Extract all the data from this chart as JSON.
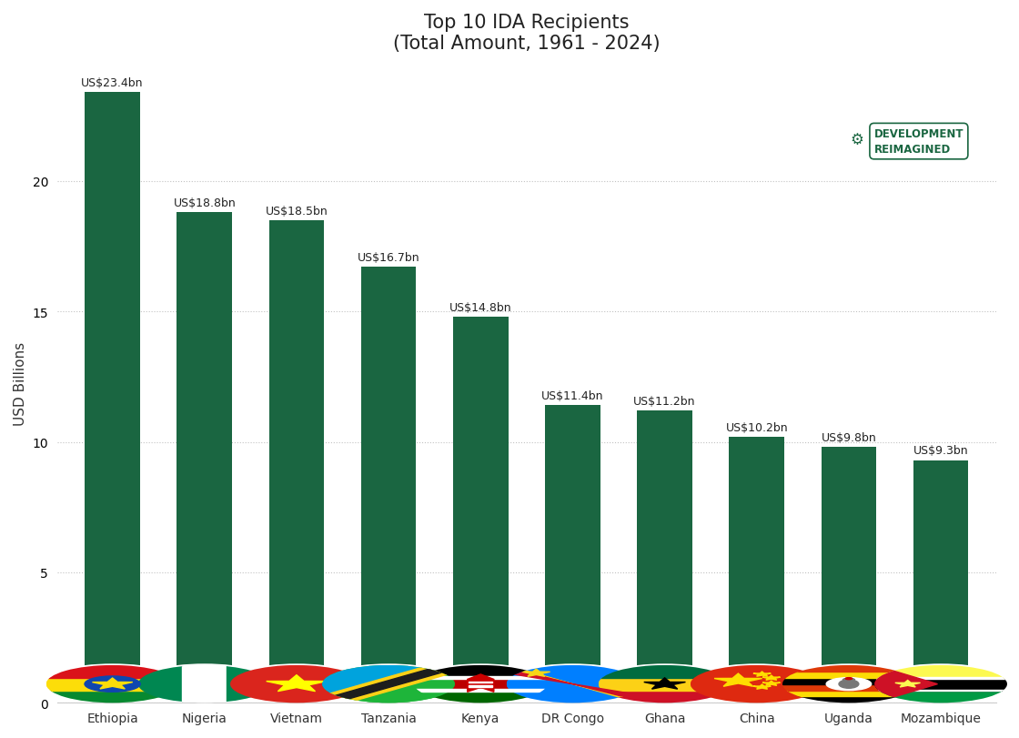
{
  "title": "Top 10 IDA Recipients\n(Total Amount, 1961 - 2024)",
  "categories": [
    "Ethiopia",
    "Nigeria",
    "Vietnam",
    "Tanzania",
    "Kenya",
    "DR Congo",
    "Ghana",
    "China",
    "Uganda",
    "Mozambique"
  ],
  "values": [
    23.4,
    18.8,
    18.5,
    16.7,
    14.8,
    11.4,
    11.2,
    10.2,
    9.8,
    9.3
  ],
  "labels": [
    "US$23.4bn",
    "US$18.8bn",
    "US$18.5bn",
    "US$16.7bn",
    "US$14.8bn",
    "US$11.4bn",
    "US$11.2bn",
    "US$10.2bn",
    "US$9.8bn",
    "US$9.3bn"
  ],
  "bar_color": "#1a6641",
  "ylabel": "USD Billions",
  "ylim": [
    0,
    24.5
  ],
  "yticks": [
    0,
    5,
    10,
    15,
    20
  ],
  "background_color": "#ffffff",
  "title_fontsize": 15,
  "label_fontsize": 9,
  "ylabel_fontsize": 11,
  "xtick_fontsize": 10,
  "ytick_fontsize": 10,
  "grid_color": "#bbbbbb",
  "grid_linestyle": ":",
  "grid_alpha": 0.9,
  "bar_width": 0.6,
  "watermark_text": "DEVELOPMENT\nREIMAGINED"
}
